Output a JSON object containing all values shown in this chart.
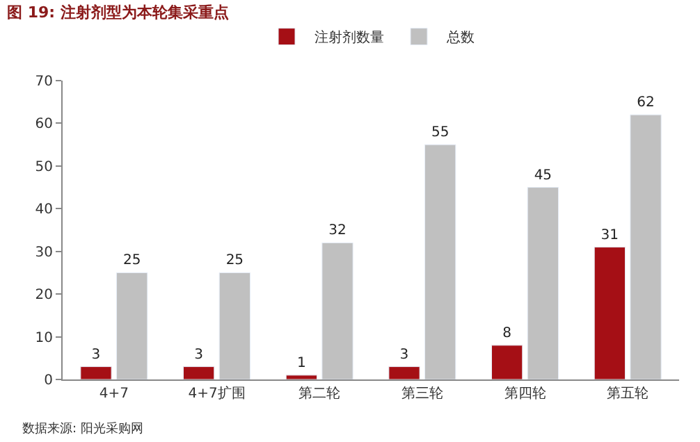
{
  "chart_data": {
    "type": "bar",
    "title": "图 19: 注射剂型为本轮集采重点",
    "categories": [
      "4+7",
      "4+7扩围",
      "第二轮",
      "第三轮",
      "第四轮",
      "第五轮"
    ],
    "series": [
      {
        "name": "注射剂数量",
        "color": "#a50f15",
        "values": [
          3,
          3,
          1,
          3,
          8,
          31
        ]
      },
      {
        "name": "总数",
        "color": "#c0c0c0",
        "values": [
          25,
          25,
          32,
          55,
          45,
          62
        ]
      }
    ],
    "ylim": [
      0,
      70
    ],
    "yticks": [
      0,
      10,
      20,
      30,
      40,
      50,
      60,
      70
    ],
    "legend": "top",
    "data_labels": true,
    "annotations": [
      "数据来源: 阳光采购网"
    ]
  }
}
